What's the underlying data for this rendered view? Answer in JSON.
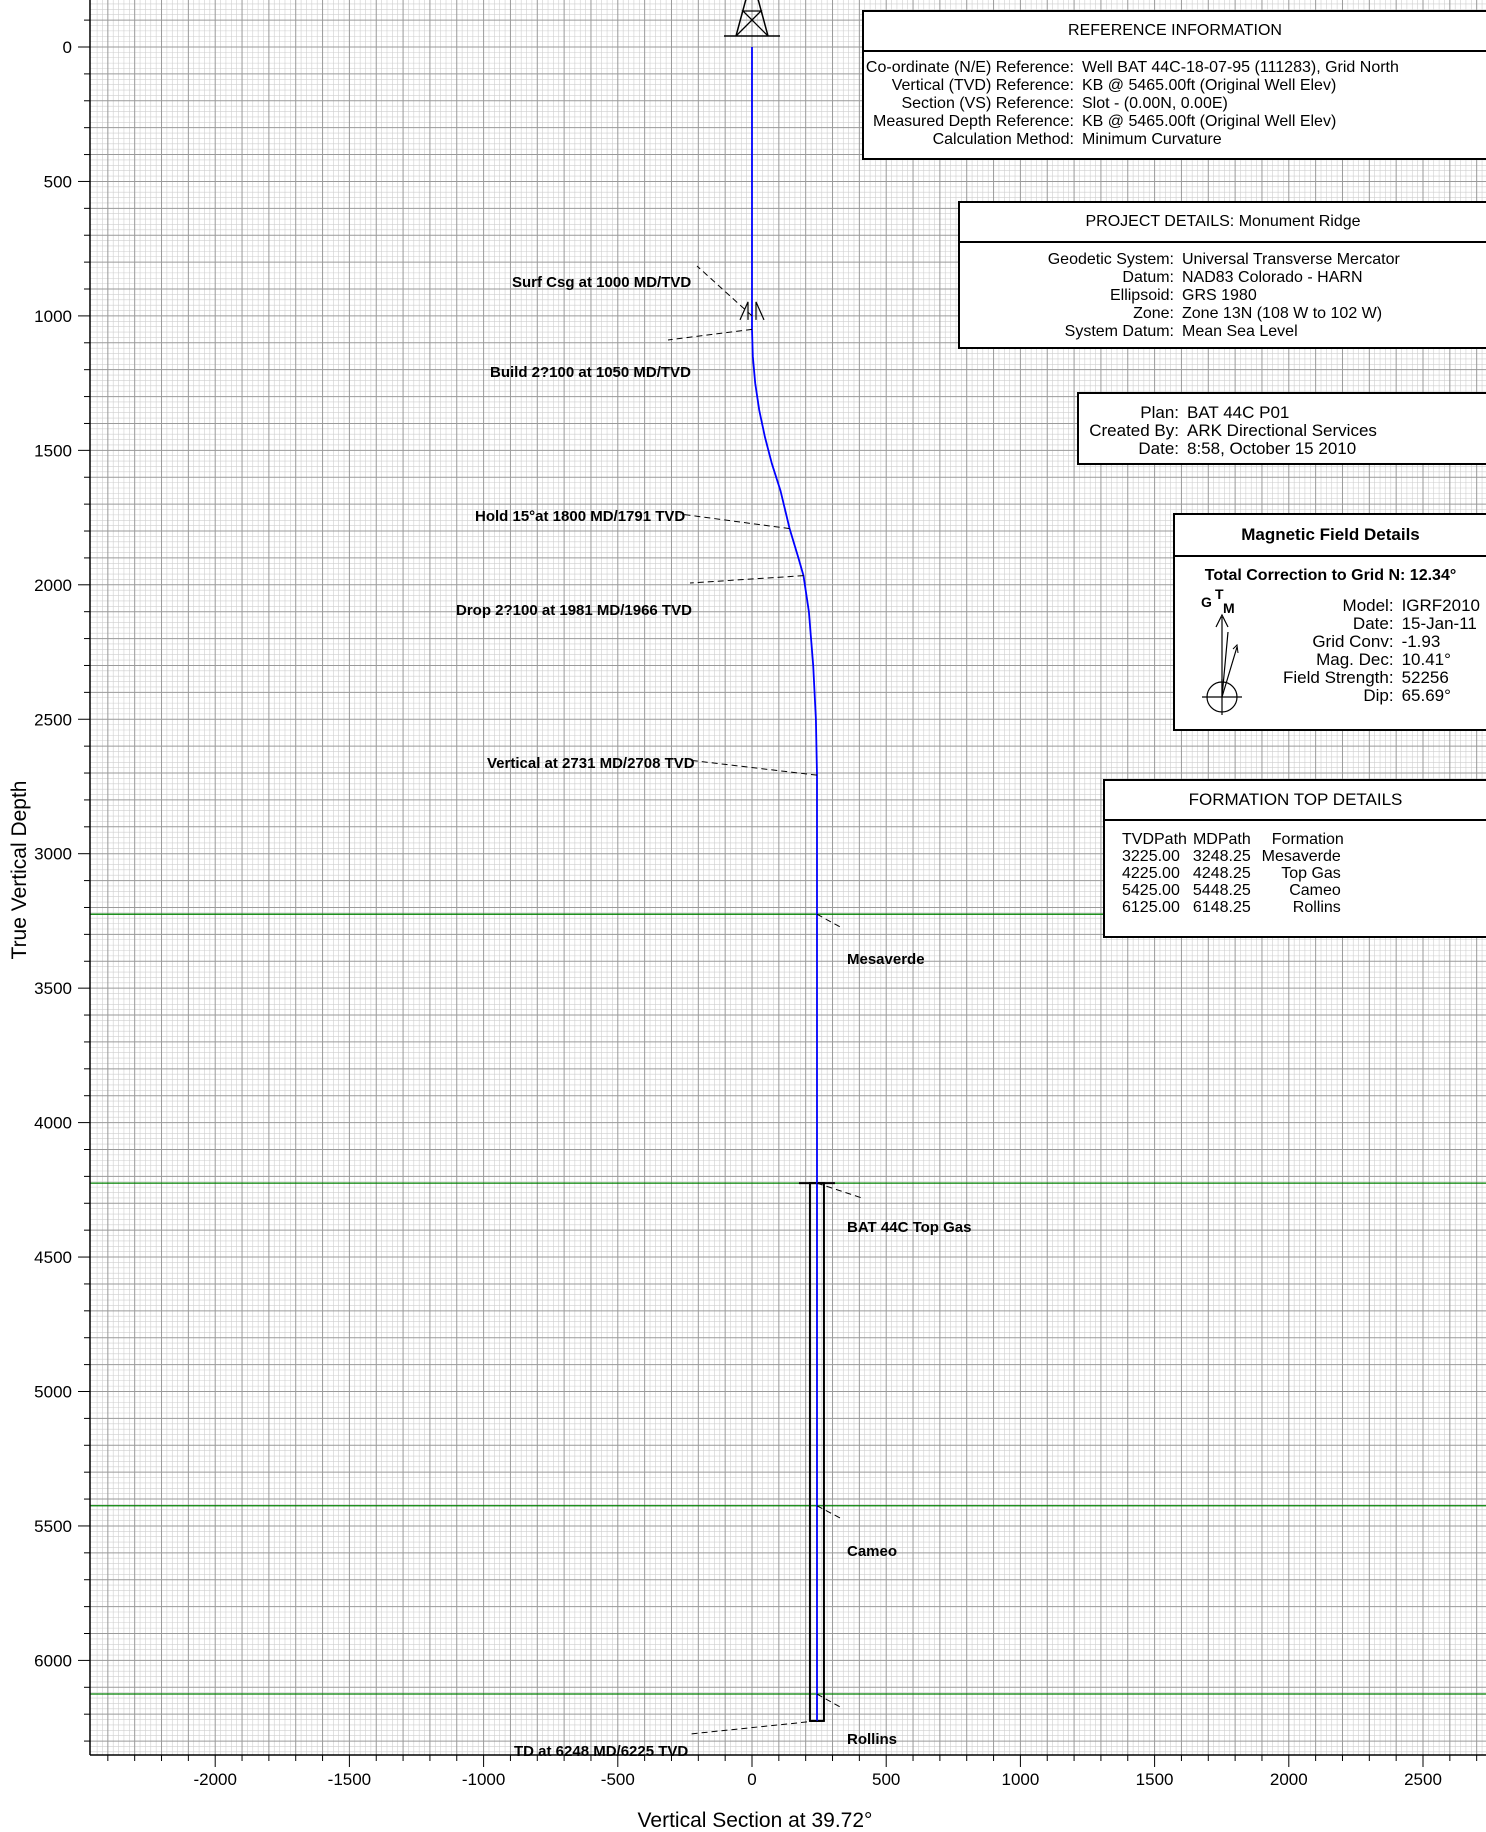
{
  "chart_data": {
    "type": "line",
    "xlabel": "Vertical Section at 39.72°",
    "ylabel": "True Vertical Depth",
    "xlim": [
      -2450,
      2750
    ],
    "ylim": [
      -160,
      6450
    ],
    "y_inverted": true,
    "x_ticks": [
      -2000,
      -1500,
      -1000,
      -500,
      0,
      500,
      1000,
      1500,
      2000,
      2500
    ],
    "y_ticks": [
      0,
      500,
      1000,
      1500,
      2000,
      2500,
      3000,
      3500,
      4000,
      4500,
      5000,
      5500,
      6000
    ],
    "grid": true,
    "series": [
      {
        "color": "#0000ff",
        "points": [
          [
            0,
            0
          ],
          [
            0,
            1050
          ],
          [
            3,
            1150
          ],
          [
            12,
            1250
          ],
          [
            27,
            1350
          ],
          [
            48,
            1450
          ],
          [
            74,
            1550
          ],
          [
            106,
            1650
          ],
          [
            140,
            1791
          ],
          [
            173,
            1900
          ],
          [
            192,
            1966
          ],
          [
            212,
            2100
          ],
          [
            228,
            2300
          ],
          [
            238,
            2500
          ],
          [
            242,
            2708
          ],
          [
            242,
            6225
          ]
        ]
      }
    ],
    "formations": [
      {
        "name": "Mesaverde",
        "tvd": 3225,
        "color": "#008000"
      },
      {
        "name": "Top Gas",
        "tvd": 4225,
        "color": "#008000"
      },
      {
        "name": "Cameo",
        "tvd": 5425,
        "color": "#008000"
      },
      {
        "name": "Rollins",
        "tvd": 6125,
        "color": "#008000"
      }
    ],
    "annotations": [
      {
        "text": "Surf Csg at 1000 MD/TVD",
        "vs": 0,
        "tvd": 1000
      },
      {
        "text": "Build 2?100 at 1050 MD/TVD",
        "vs": 0,
        "tvd": 1050
      },
      {
        "text": "Hold 15°at 1800 MD/1791 TVD",
        "vs": 140,
        "tvd": 1791
      },
      {
        "text": "Drop 2?100 at 1981 MD/1966 TVD",
        "vs": 192,
        "tvd": 1966
      },
      {
        "text": "Vertical at 2731 MD/2708 TVD",
        "vs": 242,
        "tvd": 2708
      },
      {
        "text": "Mesaverde",
        "vs": 242,
        "tvd": 3225
      },
      {
        "text": "BAT 44C Top Gas",
        "vs": 242,
        "tvd": 4225
      },
      {
        "text": "Cameo",
        "vs": 242,
        "tvd": 5425
      },
      {
        "text": "Rollins",
        "vs": 242,
        "tvd": 6125
      },
      {
        "text": "TD at 6248 MD/6225 TVD",
        "vs": 242,
        "tvd": 6225
      }
    ]
  },
  "reference": {
    "title": "REFERENCE INFORMATION",
    "rows": [
      {
        "k": "Co-ordinate (N/E) Reference:",
        "v": "Well BAT 44C-18-07-95 (111283), Grid North"
      },
      {
        "k": "Vertical (TVD) Reference:",
        "v": "KB @ 5465.00ft (Original Well Elev)"
      },
      {
        "k": "Section (VS) Reference:",
        "v": "Slot - (0.00N, 0.00E)"
      },
      {
        "k": "Measured Depth Reference:",
        "v": "KB @ 5465.00ft (Original Well Elev)"
      },
      {
        "k": "Calculation Method:",
        "v": "Minimum Curvature"
      }
    ]
  },
  "project": {
    "title": "PROJECT DETAILS: Monument Ridge",
    "rows": [
      {
        "k": "Geodetic System:",
        "v": "Universal Transverse Mercator"
      },
      {
        "k": "Datum:",
        "v": "NAD83 Colorado - HARN"
      },
      {
        "k": "Ellipsoid:",
        "v": "GRS 1980"
      },
      {
        "k": "Zone:",
        "v": "Zone 13N (108 W to 102 W)"
      },
      {
        "k": "System Datum:",
        "v": "Mean Sea Level"
      }
    ]
  },
  "plan": {
    "rows": [
      {
        "k": "Plan:",
        "v": "BAT 44C P01"
      },
      {
        "k": "Created By:",
        "v": "ARK Directional Services"
      },
      {
        "k": "Date:",
        "v": "8:58, October 15 2010"
      }
    ]
  },
  "magnetic": {
    "title": "Magnetic Field Details",
    "subtitle": "Total Correction to Grid N: 12.34°",
    "north_labels": {
      "g": "G",
      "t": "T",
      "m": "M"
    },
    "rows": [
      {
        "k": "Model:",
        "v": "IGRF2010"
      },
      {
        "k": "Date:",
        "v": "15-Jan-11"
      },
      {
        "k": "Grid Conv:",
        "v": "-1.93"
      },
      {
        "k": "Mag. Dec:",
        "v": "10.41°"
      },
      {
        "k": "Field Strength:",
        "v": "52256"
      },
      {
        "k": "Dip:",
        "v": "65.69°"
      }
    ]
  },
  "formation_table": {
    "title": "FORMATION TOP DETAILS",
    "headers": [
      "TVDPath",
      "MDPath",
      "Formation"
    ],
    "rows": [
      [
        "3225.00",
        "3248.25",
        "Mesaverde"
      ],
      [
        "4225.00",
        "4248.25",
        "Top Gas"
      ],
      [
        "5425.00",
        "5448.25",
        "Cameo"
      ],
      [
        "6125.00",
        "6148.25",
        "Rollins"
      ]
    ]
  }
}
